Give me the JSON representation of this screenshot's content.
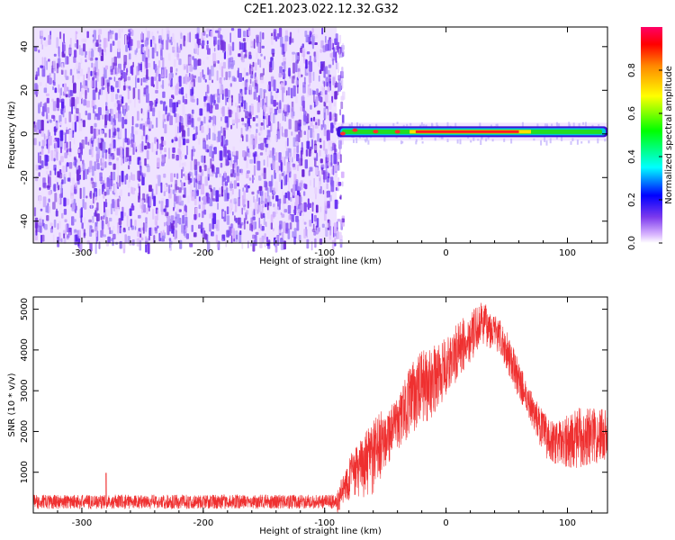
{
  "title": "C2E1.2023.022.12.32.G32",
  "chart_data": [
    {
      "type": "heatmap",
      "title": "C2E1.2023.022.12.32.G32",
      "xlabel": "Height of straight line (km)",
      "ylabel": "Frequency (Hz)",
      "xlim": [
        -340,
        133
      ],
      "ylim": [
        -50,
        49
      ],
      "xticks": [
        -300,
        -200,
        -100,
        0,
        100
      ],
      "yticks": [
        -40,
        -20,
        0,
        20,
        40
      ],
      "xtick_labels": [
        "-300",
        "-200",
        "-100",
        "0",
        "100"
      ],
      "ytick_labels": [
        "-40",
        "-20",
        "0",
        "20",
        "40"
      ],
      "noise_region": {
        "x_from": -340,
        "x_to": -90,
        "f_from": -50,
        "f_to": 49,
        "amplitude": "0.1-0.3"
      },
      "signal_region": {
        "x_from": -90,
        "x_to": 133,
        "center_freq_hz": 1,
        "peak_amplitude": 0.95
      },
      "colorbar": {
        "label": "Normalized spectral amplitude",
        "range": [
          0.0,
          1.0
        ],
        "ticks": [
          0.0,
          0.2,
          0.4,
          0.6,
          0.8
        ],
        "tick_labels": [
          "0.0",
          "0.2",
          "0.4",
          "0.6",
          "0.8"
        ]
      }
    },
    {
      "type": "line",
      "xlabel": "Height of straight line (km)",
      "ylabel": "SNR (10 * v/v)",
      "xlim": [
        -340,
        133
      ],
      "ylim": [
        0,
        5300
      ],
      "xticks": [
        -300,
        -200,
        -100,
        0,
        100
      ],
      "yticks": [
        1000,
        2000,
        3000,
        4000,
        5000
      ],
      "xtick_labels": [
        "-300",
        "-200",
        "-100",
        "0",
        "100"
      ],
      "ytick_labels": [
        "1000",
        "2000",
        "3000",
        "4000",
        "5000"
      ],
      "color": "#ef3030",
      "envelope": {
        "x": [
          -340,
          -300,
          -280,
          -200,
          -100,
          -90,
          -80,
          -70,
          -60,
          -50,
          -40,
          -30,
          -20,
          -10,
          0,
          10,
          20,
          30,
          40,
          50,
          60,
          70,
          80,
          90,
          100,
          110,
          120,
          133
        ],
        "low": [
          0,
          0,
          0,
          0,
          0,
          0,
          300,
          400,
          300,
          1100,
          1500,
          1900,
          2100,
          2400,
          2800,
          3200,
          3700,
          4100,
          4000,
          3500,
          2800,
          2200,
          1400,
          1200,
          1100,
          1100,
          1200,
          1200
        ],
        "high": [
          500,
          600,
          1000,
          500,
          500,
          500,
          1400,
          1800,
          2300,
          2600,
          2800,
          3600,
          4000,
          4100,
          4300,
          4700,
          4900,
          5200,
          4900,
          4500,
          3700,
          3000,
          2500,
          2200,
          2400,
          2600,
          2600,
          2600
        ]
      }
    }
  ]
}
